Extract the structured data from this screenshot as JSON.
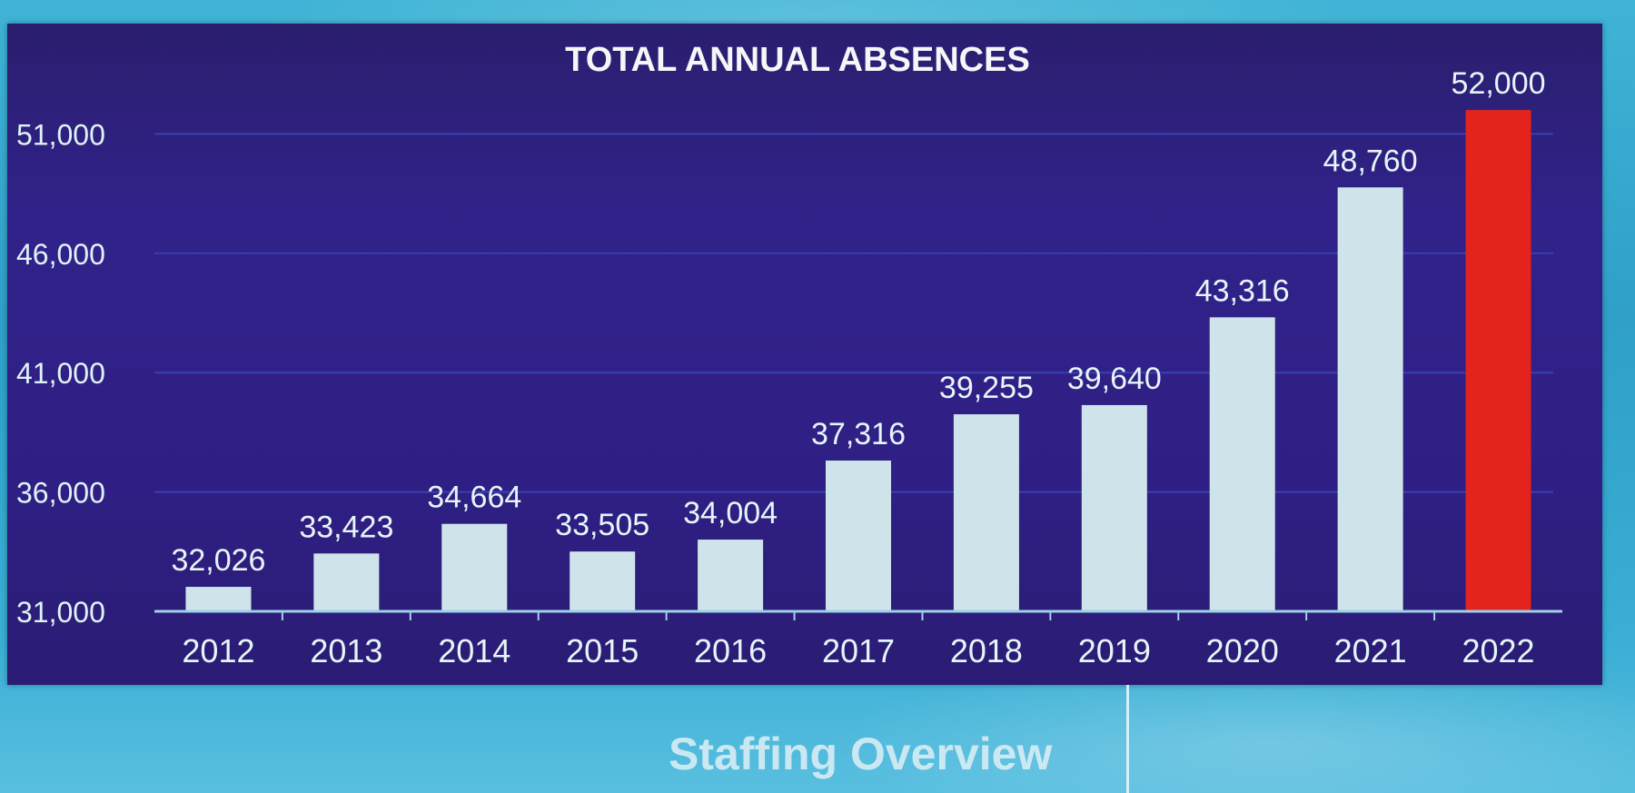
{
  "chart_data": {
    "type": "bar",
    "title": "TOTAL ANNUAL ABSENCES",
    "xlabel": "",
    "ylabel": "",
    "categories": [
      "2012",
      "2013",
      "2014",
      "2015",
      "2016",
      "2017",
      "2018",
      "2019",
      "2020",
      "2021",
      "2022"
    ],
    "values": [
      32026,
      33423,
      34664,
      33505,
      34004,
      37316,
      39255,
      39640,
      43316,
      48760,
      52000
    ],
    "value_labels": [
      "32,026",
      "33,423",
      "34,664",
      "33,505",
      "34,004",
      "37,316",
      "39,255",
      "39,640",
      "43,316",
      "48,760",
      "52,000"
    ],
    "ylim": [
      31000,
      52000
    ],
    "yticks": [
      31000,
      36000,
      41000,
      46000,
      51000
    ],
    "ytick_labels": [
      "31,000",
      "36,000",
      "41,000",
      "46,000",
      "51,000"
    ],
    "grid": true,
    "legend": "none",
    "colors": {
      "bar": "#cfe4ea",
      "highlight_bar": "#e3231c",
      "highlight_category": "2022",
      "panel": "#2f2185",
      "gridline": "#3a3fb0",
      "axis": "#9fd0e6"
    }
  },
  "footer": {
    "title": "Staffing Overview"
  }
}
